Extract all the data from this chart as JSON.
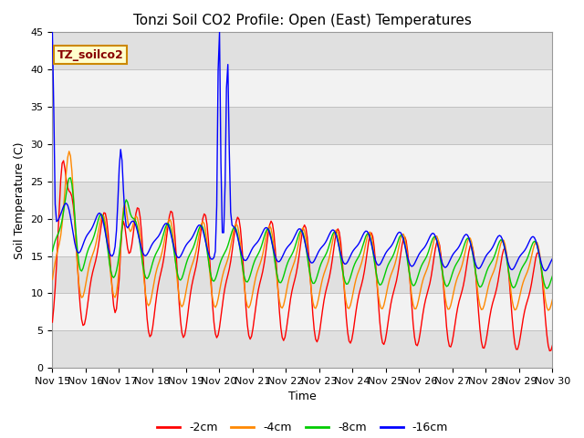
{
  "title": "Tonzi Soil CO2 Profile: Open (East) Temperatures",
  "ylabel": "Soil Temperature (C)",
  "xlabel": "Time",
  "legend_label": "TZ_soilco2",
  "ylim": [
    0,
    45
  ],
  "xlim": [
    0,
    15
  ],
  "xtick_labels": [
    "Nov 15",
    "Nov 16",
    "Nov 17",
    "Nov 18",
    "Nov 19",
    "Nov 20",
    "Nov 21",
    "Nov 22",
    "Nov 23",
    "Nov 24",
    "Nov 25",
    "Nov 26",
    "Nov 27",
    "Nov 28",
    "Nov 29",
    "Nov 30"
  ],
  "line_colors": [
    "#ff0000",
    "#ff8800",
    "#00cc00",
    "#0000ff"
  ],
  "line_labels": [
    "-2cm",
    "-4cm",
    "-8cm",
    "-16cm"
  ],
  "background_color": "#ffffff",
  "plot_bg_color": "#e0e0e0",
  "band_color": "#f0f0f0",
  "legend_text_color": "#880000",
  "legend_bg_color": "#ffffcc",
  "legend_border_color": "#cc8800"
}
